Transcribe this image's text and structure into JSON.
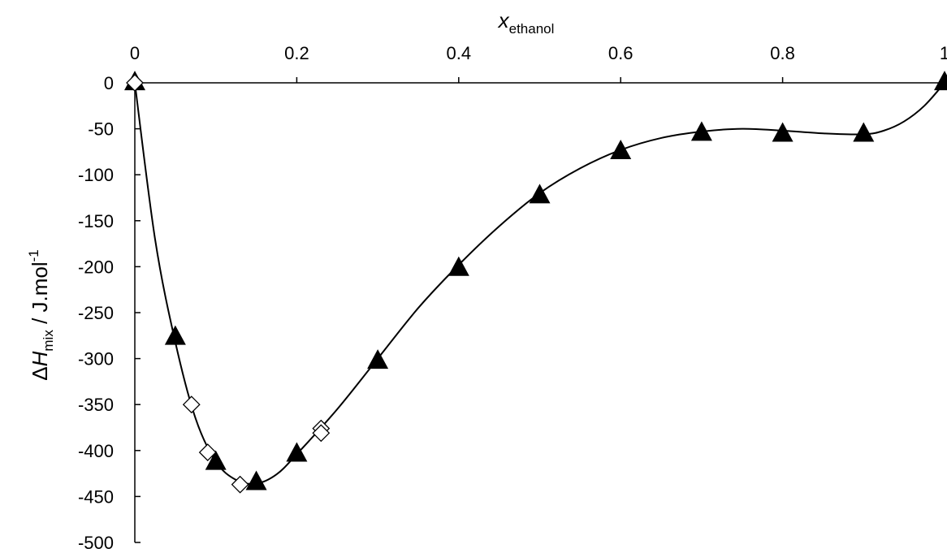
{
  "chart_data": {
    "type": "scatter",
    "x_label": {
      "main": "x",
      "sub": "ethanol"
    },
    "y_label": {
      "prefix": "Δ",
      "main": "H",
      "sub": "mix",
      "unit": " / J.mol",
      "sup": "-1"
    },
    "x_axis_position": "top",
    "xlim": [
      0,
      1
    ],
    "ylim": [
      -500,
      0
    ],
    "x_ticks": [
      0,
      0.2,
      0.4,
      0.6,
      0.8,
      1
    ],
    "x_tick_labels": [
      "0",
      "0.2",
      "0.4",
      "0.6",
      "0.8",
      "1"
    ],
    "y_ticks": [
      0,
      -50,
      -100,
      -150,
      -200,
      -250,
      -300,
      -350,
      -400,
      -450,
      -500
    ],
    "y_tick_labels": [
      "0",
      "-50",
      "-100",
      "-150",
      "-200",
      "-250",
      "-300",
      "-350",
      "-400",
      "-450",
      "-500"
    ],
    "grid": false,
    "series": [
      {
        "marker": "filled-triangle",
        "color": "#000000",
        "x": [
          0,
          0.05,
          0.1,
          0.15,
          0.2,
          0.3,
          0.4,
          0.5,
          0.6,
          0.7,
          0.8,
          0.9,
          1.0
        ],
        "y": [
          0,
          -277,
          -413,
          -435,
          -404,
          -303,
          -202,
          -123,
          -75,
          -55,
          -56,
          -56,
          0
        ]
      },
      {
        "marker": "open-diamond",
        "color": "#000000",
        "x": [
          0,
          0.07,
          0.09,
          0.13,
          0.23,
          0.23
        ],
        "y": [
          0,
          -350,
          -402,
          -437,
          -376,
          -381
        ]
      }
    ],
    "fit_curve": {
      "x": [
        0,
        0.025,
        0.05,
        0.075,
        0.1,
        0.125,
        0.15,
        0.175,
        0.2,
        0.25,
        0.3,
        0.35,
        0.4,
        0.45,
        0.5,
        0.55,
        0.6,
        0.65,
        0.7,
        0.75,
        0.8,
        0.85,
        0.9,
        0.925,
        0.95,
        0.975,
        1.0
      ],
      "y": [
        0,
        -170,
        -282,
        -365,
        -412,
        -432,
        -436,
        -426,
        -404,
        -355,
        -300,
        -245,
        -198,
        -156,
        -120,
        -93,
        -73,
        -60,
        -53,
        -50,
        -52,
        -55,
        -56,
        -52,
        -42,
        -25,
        0
      ]
    }
  }
}
